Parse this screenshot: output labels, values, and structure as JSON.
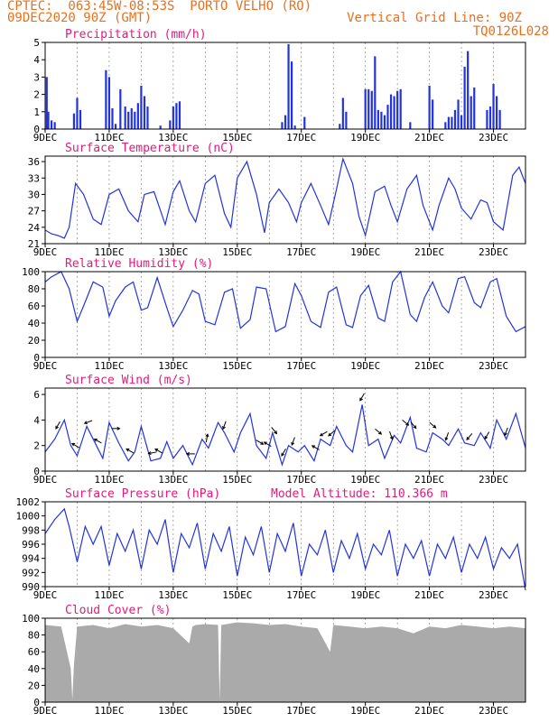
{
  "header": {
    "line1": "CPTEC:  063:45W-08:53S  PORTO VELHO (RO)",
    "line2": "09DEC2020 90Z (GMT)",
    "grid_line": "Vertical Grid Line: 90Z",
    "code": "TQ0126L028"
  },
  "colors": {
    "header": "#e8701c",
    "title": "#e8187c",
    "series": "#2233dd",
    "cloud": "#aaaaaa",
    "arrow": "#000000"
  },
  "chart_data": [
    {
      "type": "bar",
      "title": "Precipitation (mm/h)",
      "x_ticks": [
        "9DEC",
        "11DEC",
        "13DEC",
        "15DEC",
        "17DEC",
        "19DEC",
        "21DEC",
        "23DEC"
      ],
      "ylim": [
        0,
        5
      ],
      "yticks": [
        "0",
        "1",
        "2",
        "3",
        "4",
        "5"
      ],
      "x_range_days": [
        0,
        15
      ],
      "bars": [
        [
          0.05,
          3.0
        ],
        [
          0.1,
          1.0
        ],
        [
          0.2,
          0.5
        ],
        [
          0.3,
          0.4
        ],
        [
          0.9,
          0.9
        ],
        [
          1.0,
          1.8
        ],
        [
          1.1,
          1.1
        ],
        [
          1.9,
          3.4
        ],
        [
          2.0,
          3.0
        ],
        [
          2.1,
          1.2
        ],
        [
          2.2,
          0.3
        ],
        [
          2.35,
          2.3
        ],
        [
          2.5,
          1.3
        ],
        [
          2.6,
          1.0
        ],
        [
          2.7,
          1.2
        ],
        [
          2.8,
          1.0
        ],
        [
          2.9,
          1.5
        ],
        [
          3.0,
          2.5
        ],
        [
          3.1,
          1.9
        ],
        [
          3.2,
          1.3
        ],
        [
          3.6,
          0.2
        ],
        [
          3.9,
          0.5
        ],
        [
          4.0,
          1.3
        ],
        [
          4.1,
          1.5
        ],
        [
          4.2,
          1.6
        ],
        [
          7.4,
          0.4
        ],
        [
          7.5,
          0.8
        ],
        [
          7.6,
          4.9
        ],
        [
          7.7,
          3.9
        ],
        [
          7.8,
          0.2
        ],
        [
          8.1,
          0.7
        ],
        [
          9.2,
          0.3
        ],
        [
          9.3,
          1.8
        ],
        [
          9.4,
          1.0
        ],
        [
          10.0,
          2.3
        ],
        [
          10.1,
          2.3
        ],
        [
          10.2,
          2.2
        ],
        [
          10.3,
          4.2
        ],
        [
          10.4,
          1.1
        ],
        [
          10.5,
          1.0
        ],
        [
          10.6,
          0.8
        ],
        [
          10.7,
          1.4
        ],
        [
          10.8,
          2.0
        ],
        [
          10.9,
          1.9
        ],
        [
          11.0,
          2.2
        ],
        [
          11.1,
          2.3
        ],
        [
          11.4,
          0.4
        ],
        [
          12.0,
          2.5
        ],
        [
          12.1,
          1.7
        ],
        [
          12.5,
          0.4
        ],
        [
          12.6,
          0.7
        ],
        [
          12.7,
          0.7
        ],
        [
          12.8,
          1.1
        ],
        [
          12.9,
          1.7
        ],
        [
          13.0,
          0.8
        ],
        [
          13.1,
          3.6
        ],
        [
          13.2,
          4.5
        ],
        [
          13.3,
          1.9
        ],
        [
          13.4,
          2.4
        ],
        [
          13.8,
          1.1
        ],
        [
          13.9,
          1.3
        ],
        [
          14.0,
          2.6
        ],
        [
          14.1,
          1.9
        ],
        [
          14.2,
          1.1
        ]
      ]
    },
    {
      "type": "line",
      "title": "Surface Temperature (nC)",
      "x_ticks": [
        "9DEC",
        "11DEC",
        "13DEC",
        "15DEC",
        "17DEC",
        "19DEC",
        "21DEC",
        "23DEC"
      ],
      "ylim": [
        21,
        37
      ],
      "yticks": [
        "21",
        "24",
        "27",
        "30",
        "33",
        "36"
      ],
      "x": [
        0,
        0.2,
        0.4,
        0.6,
        0.75,
        0.95,
        1.2,
        1.5,
        1.75,
        2.0,
        2.3,
        2.6,
        2.9,
        3.1,
        3.4,
        3.75,
        4.0,
        4.2,
        4.5,
        4.7,
        5.0,
        5.3,
        5.6,
        5.8,
        6.0,
        6.3,
        6.6,
        6.85,
        7.0,
        7.3,
        7.6,
        7.85,
        8.0,
        8.3,
        8.6,
        8.85,
        9.1,
        9.3,
        9.6,
        9.8,
        10.0,
        10.3,
        10.6,
        10.8,
        11.0,
        11.3,
        11.6,
        11.8,
        12.1,
        12.3,
        12.6,
        12.8,
        13.0,
        13.3,
        13.6,
        13.8,
        14.0,
        14.3,
        14.6,
        14.8,
        15.0
      ],
      "y": [
        23.5,
        22.8,
        22.5,
        22.0,
        24.0,
        32.0,
        30.0,
        25.5,
        24.5,
        30.0,
        31.0,
        27.0,
        25.0,
        30.0,
        30.5,
        24.5,
        30.5,
        32.5,
        27.0,
        25.0,
        32.0,
        33.5,
        26.5,
        24.0,
        33.0,
        36.0,
        30.0,
        23.0,
        28.5,
        31.0,
        28.5,
        25.0,
        28.5,
        32.0,
        28.0,
        24.5,
        31.0,
        36.5,
        32.0,
        26.0,
        22.5,
        30.5,
        31.5,
        28.0,
        25.0,
        31.0,
        33.5,
        28.0,
        23.5,
        28.0,
        33.0,
        31.0,
        27.5,
        25.5,
        29.0,
        28.5,
        25.0,
        23.5,
        33.5,
        35.0,
        32.0
      ]
    },
    {
      "type": "line",
      "title": "Relative Humidity (%)",
      "x_ticks": [
        "9DEC",
        "11DEC",
        "13DEC",
        "15DEC",
        "17DEC",
        "19DEC",
        "21DEC",
        "23DEC"
      ],
      "ylim": [
        0,
        100
      ],
      "yticks": [
        "0",
        "20",
        "40",
        "60",
        "80",
        "100"
      ],
      "x": [
        0,
        0.2,
        0.5,
        0.75,
        1.0,
        1.2,
        1.5,
        1.8,
        2.0,
        2.2,
        2.5,
        2.75,
        3.0,
        3.2,
        3.5,
        3.8,
        4.0,
        4.3,
        4.6,
        4.8,
        5.0,
        5.3,
        5.6,
        5.85,
        6.1,
        6.4,
        6.6,
        6.9,
        7.2,
        7.5,
        7.8,
        8.0,
        8.3,
        8.6,
        8.85,
        9.1,
        9.4,
        9.6,
        9.85,
        10.1,
        10.4,
        10.6,
        10.85,
        11.1,
        11.4,
        11.6,
        11.85,
        12.1,
        12.4,
        12.6,
        12.9,
        13.1,
        13.4,
        13.6,
        13.9,
        14.1,
        14.4,
        14.7,
        15.0
      ],
      "y": [
        88,
        94,
        100,
        80,
        42,
        60,
        88,
        82,
        48,
        66,
        82,
        88,
        55,
        58,
        93,
        58,
        36,
        55,
        78,
        74,
        42,
        38,
        76,
        80,
        34,
        44,
        82,
        80,
        30,
        36,
        86,
        72,
        42,
        35,
        76,
        82,
        38,
        35,
        72,
        84,
        46,
        42,
        88,
        100,
        50,
        42,
        70,
        88,
        60,
        52,
        92,
        94,
        64,
        58,
        88,
        92,
        48,
        30,
        36
      ]
    },
    {
      "type": "line",
      "title": "Surface Wind (m/s)",
      "x_ticks": [
        "9DEC",
        "11DEC",
        "13DEC",
        "15DEC",
        "17DEC",
        "19DEC",
        "21DEC",
        "23DEC"
      ],
      "ylim": [
        0,
        6.5
      ],
      "yticks": [
        "0",
        "2",
        "4",
        "6"
      ],
      "x": [
        0,
        0.3,
        0.6,
        0.8,
        1.0,
        1.3,
        1.6,
        1.8,
        2.0,
        2.3,
        2.6,
        2.8,
        3.0,
        3.3,
        3.6,
        3.8,
        4.0,
        4.3,
        4.6,
        4.9,
        5.1,
        5.4,
        5.6,
        5.9,
        6.1,
        6.4,
        6.6,
        6.9,
        7.1,
        7.4,
        7.6,
        7.9,
        8.1,
        8.4,
        8.6,
        8.9,
        9.1,
        9.4,
        9.6,
        9.9,
        10.1,
        10.4,
        10.6,
        10.9,
        11.1,
        11.4,
        11.6,
        11.9,
        12.1,
        12.4,
        12.6,
        12.9,
        13.1,
        13.4,
        13.6,
        13.9,
        14.1,
        14.4,
        14.7,
        15.0
      ],
      "y": [
        1.5,
        2.5,
        4.0,
        2.0,
        1.2,
        3.5,
        2.0,
        1.0,
        3.8,
        2.2,
        0.8,
        1.5,
        3.5,
        0.8,
        1.0,
        2.3,
        1.0,
        2.0,
        0.5,
        2.5,
        1.8,
        3.8,
        3.0,
        1.5,
        3.0,
        4.5,
        2.0,
        1.0,
        3.0,
        0.5,
        2.0,
        1.5,
        2.0,
        0.8,
        2.5,
        2.0,
        3.5,
        2.0,
        1.5,
        5.2,
        2.0,
        2.5,
        1.0,
        2.8,
        2.2,
        4.2,
        1.8,
        1.5,
        3.0,
        2.5,
        2.0,
        3.3,
        2.2,
        2.0,
        3.0,
        1.8,
        4.0,
        2.5,
        4.5,
        1.8
      ]
    },
    {
      "type": "line",
      "title": "Surface Pressure (hPa)",
      "subtitle": "Model Altitude: 110.366 m",
      "x_ticks": [
        "9DEC",
        "11DEC",
        "13DEC",
        "15DEC",
        "17DEC",
        "19DEC",
        "21DEC",
        "23DEC"
      ],
      "ylim": [
        990,
        1002
      ],
      "yticks": [
        "990",
        "992",
        "994",
        "996",
        "998",
        "1000",
        "1002"
      ],
      "x": [
        0,
        0.3,
        0.6,
        0.75,
        1.0,
        1.25,
        1.5,
        1.75,
        2.0,
        2.25,
        2.5,
        2.75,
        3.0,
        3.25,
        3.5,
        3.75,
        4.0,
        4.25,
        4.5,
        4.75,
        5.0,
        5.25,
        5.5,
        5.75,
        6.0,
        6.25,
        6.5,
        6.75,
        7.0,
        7.25,
        7.5,
        7.75,
        8.0,
        8.25,
        8.5,
        8.75,
        9.0,
        9.25,
        9.5,
        9.75,
        10.0,
        10.25,
        10.5,
        10.75,
        11.0,
        11.25,
        11.5,
        11.75,
        12.0,
        12.25,
        12.5,
        12.75,
        13.0,
        13.25,
        13.5,
        13.75,
        14.0,
        14.25,
        14.5,
        14.75,
        15.0
      ],
      "y": [
        997.5,
        999.5,
        1001.0,
        998.5,
        993.5,
        998.5,
        996.0,
        998.5,
        993.0,
        997.5,
        995.0,
        998.0,
        992.5,
        998.0,
        996.0,
        999.5,
        992.0,
        997.5,
        995.5,
        999.0,
        992.5,
        997.5,
        995.0,
        998.5,
        991.5,
        997.0,
        994.5,
        998.5,
        992.0,
        997.5,
        995.0,
        999.0,
        991.5,
        996.0,
        994.5,
        998.0,
        992.0,
        996.5,
        994.0,
        997.5,
        992.5,
        996.0,
        994.5,
        998.0,
        991.5,
        996.0,
        994.0,
        996.5,
        991.5,
        996.0,
        994.0,
        997.0,
        992.0,
        996.0,
        994.0,
        997.0,
        992.5,
        995.5,
        994.0,
        996.0,
        989.5
      ]
    },
    {
      "type": "area",
      "title": "Cloud Cover (%)",
      "x_ticks": [
        "9DEC",
        "11DEC",
        "13DEC",
        "15DEC",
        "17DEC",
        "19DEC",
        "21DEC",
        "23DEC"
      ],
      "ylim": [
        0,
        100
      ],
      "yticks": [
        "0",
        "20",
        "40",
        "60",
        "80",
        "100"
      ],
      "x": [
        0,
        0.5,
        0.8,
        0.85,
        0.9,
        1.0,
        1.5,
        2.0,
        2.5,
        3.0,
        3.5,
        4.0,
        4.5,
        4.6,
        4.7,
        5.0,
        5.4,
        5.45,
        5.5,
        6.0,
        6.5,
        7.0,
        7.5,
        8.0,
        8.5,
        8.9,
        9.0,
        9.5,
        10.0,
        10.5,
        11.0,
        11.5,
        12.0,
        12.5,
        13.0,
        13.5,
        14.0,
        14.5,
        15.0
      ],
      "y": [
        92,
        90,
        40,
        3,
        45,
        90,
        92,
        88,
        93,
        90,
        92,
        88,
        70,
        90,
        92,
        93,
        92,
        2,
        92,
        95,
        94,
        92,
        93,
        90,
        88,
        60,
        92,
        90,
        88,
        90,
        88,
        82,
        90,
        88,
        92,
        90,
        88,
        90,
        88
      ]
    }
  ],
  "wind_arrows": [
    {
      "day": 0.4,
      "dir": 210
    },
    {
      "day": 0.95,
      "dir": 300
    },
    {
      "day": 1.35,
      "dir": 250
    },
    {
      "day": 1.65,
      "dir": 300
    },
    {
      "day": 2.2,
      "dir": 90
    },
    {
      "day": 2.65,
      "dir": 300
    },
    {
      "day": 3.35,
      "dir": 260
    },
    {
      "day": 3.55,
      "dir": 300
    },
    {
      "day": 4.55,
      "dir": 270
    },
    {
      "day": 5.05,
      "dir": 10
    },
    {
      "day": 5.6,
      "dir": 200
    },
    {
      "day": 6.7,
      "dir": 120
    },
    {
      "day": 6.95,
      "dir": 300
    },
    {
      "day": 7.15,
      "dir": 140
    },
    {
      "day": 7.45,
      "dir": 210
    },
    {
      "day": 7.75,
      "dir": 200
    },
    {
      "day": 8.45,
      "dir": 300
    },
    {
      "day": 8.7,
      "dir": 240
    },
    {
      "day": 8.95,
      "dir": 230
    },
    {
      "day": 9.9,
      "dir": 210
    },
    {
      "day": 10.4,
      "dir": 130
    },
    {
      "day": 10.8,
      "dir": 160
    },
    {
      "day": 11.25,
      "dir": 130
    },
    {
      "day": 11.5,
      "dir": 140
    },
    {
      "day": 12.1,
      "dir": 130
    },
    {
      "day": 12.55,
      "dir": 200
    },
    {
      "day": 13.25,
      "dir": 220
    },
    {
      "day": 13.8,
      "dir": 210
    },
    {
      "day": 14.4,
      "dir": 200
    }
  ]
}
